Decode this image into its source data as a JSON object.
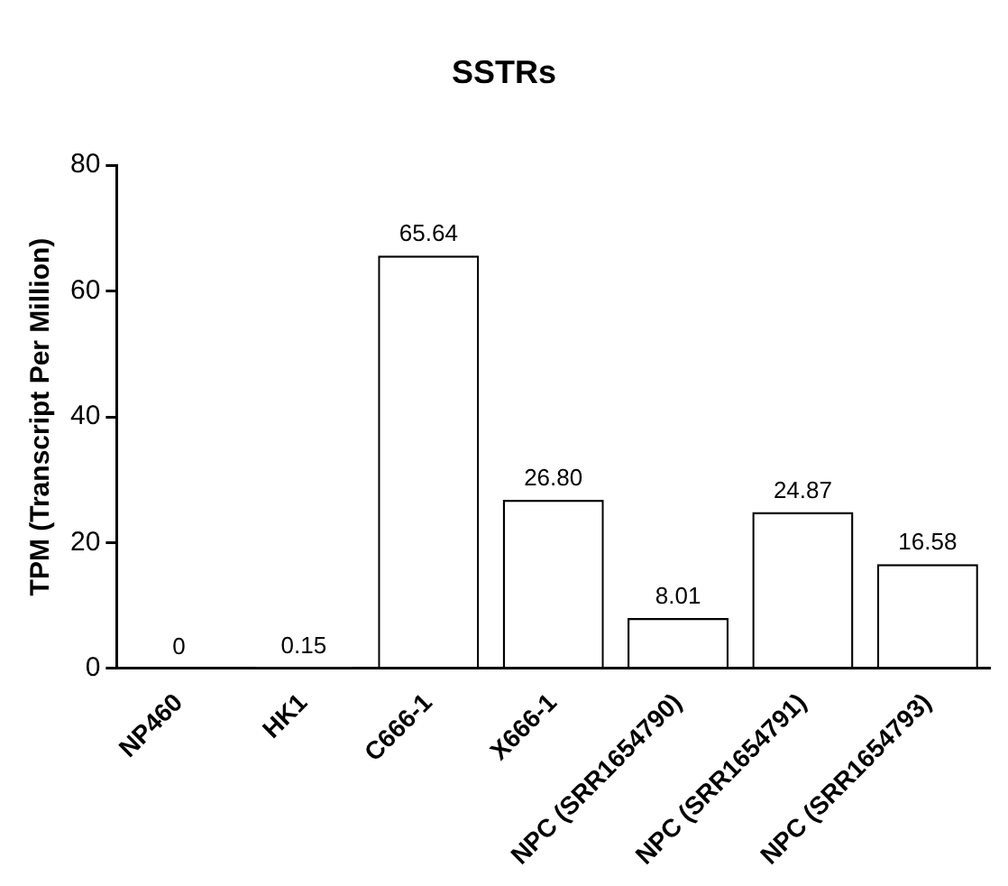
{
  "chart_data": {
    "type": "bar",
    "title": "SSTRs",
    "ylabel": "TPM (Transcript Per Million)",
    "categories": [
      "NP460",
      "HK1",
      "C666-1",
      "X666-1",
      "NPC (SRR1654790)",
      "NPC (SRR1654791)",
      "NPC (SRR1654793)"
    ],
    "values": [
      0,
      0.15,
      65.64,
      26.8,
      8.01,
      24.87,
      16.58
    ],
    "value_labels": [
      "0",
      "0.15",
      "65.64",
      "26.80",
      "8.01",
      "24.87",
      "16.58"
    ],
    "color": "#ffffff",
    "ylim": [
      0,
      80
    ],
    "yticks": [
      0,
      20,
      40,
      60,
      80
    ],
    "grid": false,
    "legend": false
  }
}
